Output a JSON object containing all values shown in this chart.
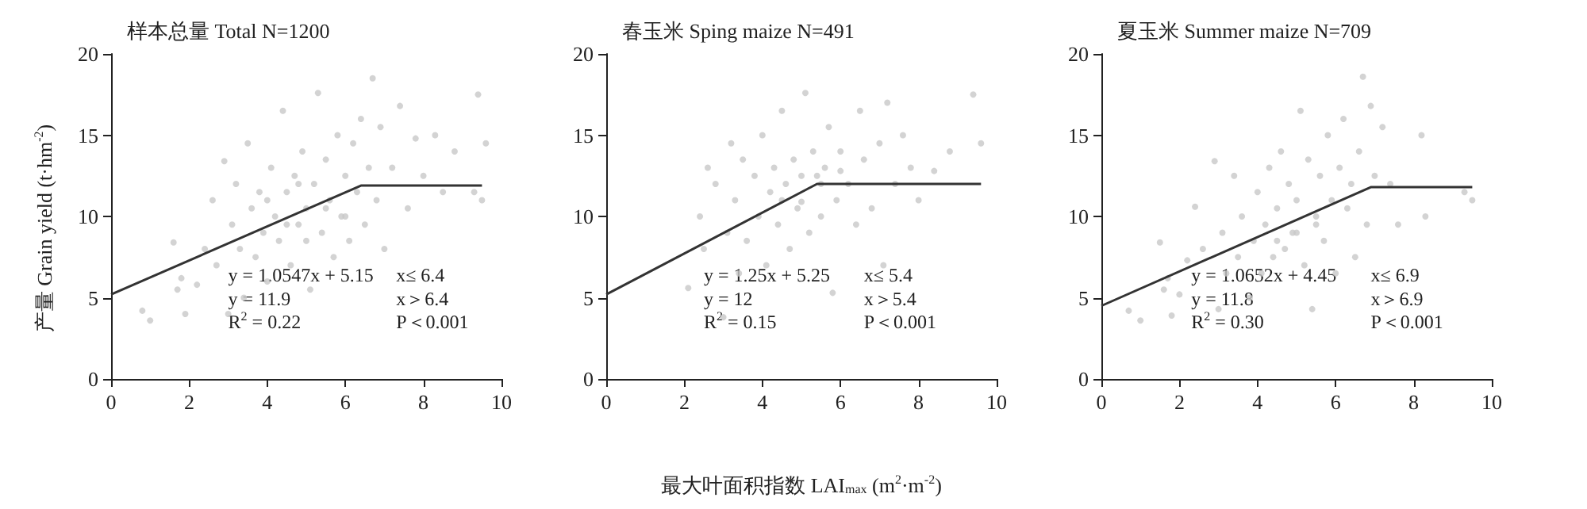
{
  "chart_data": [
    {
      "type": "scatter",
      "title": "样本总量 Total N=1200",
      "ylabel": "产量 Grain yield (t·hm$^{-2}$)",
      "xlim": [
        0,
        10
      ],
      "ylim": [
        0,
        20
      ],
      "xticks": [
        0,
        2,
        4,
        6,
        8,
        10
      ],
      "yticks": [
        0,
        5,
        10,
        15,
        20
      ],
      "annotations": [
        "y = 1.0547x + 5.15",
        "x≤ 6.4",
        "y = 11.9",
        "x＞6.4",
        "R$^{2}$ = 0.22",
        "P＜0.001"
      ],
      "series": [
        {
          "type": "scatter",
          "color": "#c8c8c8",
          "x": [
            0.8,
            1.0,
            1.6,
            1.7,
            1.8,
            1.9,
            2.2,
            2.4,
            2.6,
            2.7,
            2.9,
            3.0,
            3.1,
            3.2,
            3.3,
            3.4,
            3.5,
            3.6,
            3.7,
            3.8,
            3.9,
            4.0,
            4.1,
            4.2,
            4.3,
            4.4,
            4.5,
            4.6,
            4.7,
            4.8,
            4.9,
            5.0,
            5.1,
            5.2,
            5.3,
            5.4,
            5.5,
            5.6,
            5.7,
            5.8,
            5.9,
            6.0,
            6.1,
            6.2,
            6.3,
            6.4,
            6.5,
            6.6,
            6.7,
            6.8,
            6.9,
            7.0,
            7.2,
            7.4,
            7.6,
            7.8,
            8.0,
            8.3,
            8.5,
            8.8,
            9.3,
            9.4,
            9.5,
            9.6,
            5.0,
            4.5,
            5.5,
            4.0,
            6.0,
            4.8
          ],
          "values": [
            4.2,
            3.6,
            8.4,
            5.5,
            6.2,
            4.0,
            5.8,
            8.0,
            11.0,
            7.0,
            13.4,
            4.0,
            9.5,
            12.0,
            8.0,
            5.0,
            14.5,
            10.5,
            7.5,
            11.5,
            9.0,
            6.0,
            13.0,
            10.0,
            8.5,
            16.5,
            11.5,
            7.0,
            12.5,
            9.5,
            14.0,
            10.5,
            5.5,
            12.0,
            17.6,
            9.0,
            13.5,
            11.0,
            7.5,
            15.0,
            10.0,
            12.5,
            8.5,
            14.5,
            11.5,
            16.0,
            9.5,
            13.0,
            18.5,
            11.0,
            15.5,
            8.0,
            13.0,
            16.8,
            10.5,
            14.8,
            12.5,
            15.0,
            11.5,
            14.0,
            11.5,
            17.5,
            11.0,
            14.5,
            8.5,
            9.5,
            10.5,
            11.0,
            10.0,
            12.0
          ]
        },
        {
          "type": "line",
          "color": "#333333",
          "x": [
            0,
            6.4,
            9.5
          ],
          "values": [
            5.2,
            11.9,
            11.9
          ]
        }
      ]
    },
    {
      "type": "scatter",
      "title": "春玉米 Sping maize N=491",
      "xlabel": "最大叶面积指数 LAI$_{max}$ (m$^{2}$·m$^{-2}$)",
      "xlim": [
        0,
        10
      ],
      "ylim": [
        0,
        20
      ],
      "xticks": [
        0,
        2,
        4,
        6,
        8,
        10
      ],
      "yticks": [
        0,
        5,
        10,
        15,
        20
      ],
      "annotations": [
        "y = 1.25x + 5.25",
        "x≤ 5.4",
        "y = 12",
        "x＞5.4",
        "R$^{2}$ = 0.15",
        "P＜0.001"
      ],
      "series": [
        {
          "type": "scatter",
          "color": "#c8c8c8",
          "x": [
            2.1,
            2.4,
            2.5,
            2.6,
            2.8,
            3.0,
            3.1,
            3.2,
            3.3,
            3.4,
            3.5,
            3.6,
            3.8,
            3.9,
            4.0,
            4.1,
            4.2,
            4.3,
            4.4,
            4.5,
            4.6,
            4.7,
            4.8,
            4.9,
            5.0,
            5.1,
            5.2,
            5.3,
            5.4,
            5.5,
            5.6,
            5.7,
            5.8,
            5.9,
            6.0,
            6.2,
            6.4,
            6.5,
            6.6,
            6.8,
            7.0,
            7.1,
            7.2,
            7.4,
            7.6,
            7.8,
            8.0,
            8.4,
            8.8,
            9.4,
            9.6,
            5.0,
            4.5,
            5.5,
            6.0
          ],
          "values": [
            5.6,
            10.0,
            8.0,
            13.0,
            12.0,
            3.8,
            9.0,
            14.5,
            11.0,
            6.5,
            13.5,
            8.5,
            12.5,
            10.0,
            15.0,
            7.0,
            11.5,
            13.0,
            9.5,
            16.5,
            12.0,
            8.0,
            13.5,
            10.5,
            10.9,
            17.6,
            9.0,
            14.0,
            12.5,
            10.0,
            13.0,
            15.5,
            5.3,
            11.0,
            14.0,
            12.0,
            9.5,
            16.5,
            13.5,
            10.5,
            14.5,
            7.0,
            17.0,
            12.0,
            15.0,
            13.0,
            11.0,
            12.8,
            14.0,
            17.5,
            14.5,
            12.5,
            11.0,
            12.0,
            12.8
          ]
        },
        {
          "type": "line",
          "color": "#333333",
          "x": [
            0,
            5.4,
            9.6
          ],
          "values": [
            5.2,
            12,
            12
          ]
        }
      ]
    },
    {
      "type": "scatter",
      "title": "夏玉米 Summer maize N=709",
      "xlim": [
        0,
        10
      ],
      "ylim": [
        0,
        20
      ],
      "xticks": [
        0,
        2,
        4,
        6,
        8,
        10
      ],
      "yticks": [
        0,
        5,
        10,
        15,
        20
      ],
      "annotations": [
        "y = 1.0652x + 4.45",
        "x≤ 6.9",
        "y = 11.8",
        "x＞6.9",
        "R$^{2}$ = 0.30",
        "P＜0.001"
      ],
      "series": [
        {
          "type": "scatter",
          "color": "#c8c8c8",
          "x": [
            0.7,
            1.0,
            1.5,
            1.6,
            1.7,
            1.8,
            2.0,
            2.2,
            2.4,
            2.6,
            2.9,
            3.0,
            3.1,
            3.2,
            3.4,
            3.5,
            3.6,
            3.8,
            3.9,
            4.0,
            4.1,
            4.2,
            4.3,
            4.4,
            4.5,
            4.6,
            4.7,
            4.8,
            4.9,
            5.0,
            5.1,
            5.2,
            5.3,
            5.4,
            5.5,
            5.6,
            5.7,
            5.8,
            5.9,
            6.0,
            6.1,
            6.2,
            6.3,
            6.4,
            6.5,
            6.6,
            6.7,
            6.8,
            6.9,
            7.0,
            7.2,
            7.4,
            7.6,
            8.2,
            8.3,
            9.3,
            9.5,
            4.5,
            5.0,
            5.5
          ],
          "values": [
            4.2,
            3.6,
            8.4,
            5.5,
            6.2,
            3.9,
            5.2,
            7.3,
            10.6,
            8.0,
            13.4,
            4.3,
            9.0,
            6.5,
            12.5,
            7.5,
            10.0,
            5.0,
            8.5,
            11.5,
            6.5,
            9.5,
            13.0,
            7.5,
            10.5,
            14.0,
            8.0,
            12.0,
            9.0,
            11.0,
            16.5,
            7.0,
            13.5,
            4.3,
            10.0,
            12.5,
            8.5,
            15.0,
            11.0,
            6.5,
            13.0,
            16.0,
            10.5,
            12.0,
            7.5,
            14.0,
            18.6,
            9.5,
            16.8,
            12.5,
            15.5,
            12.0,
            9.5,
            15.0,
            10.0,
            11.5,
            11.0,
            8.5,
            9.0,
            9.5
          ]
        },
        {
          "type": "line",
          "color": "#333333",
          "x": [
            0,
            6.9,
            9.5
          ],
          "values": [
            4.5,
            11.8,
            11.8
          ]
        }
      ]
    }
  ]
}
